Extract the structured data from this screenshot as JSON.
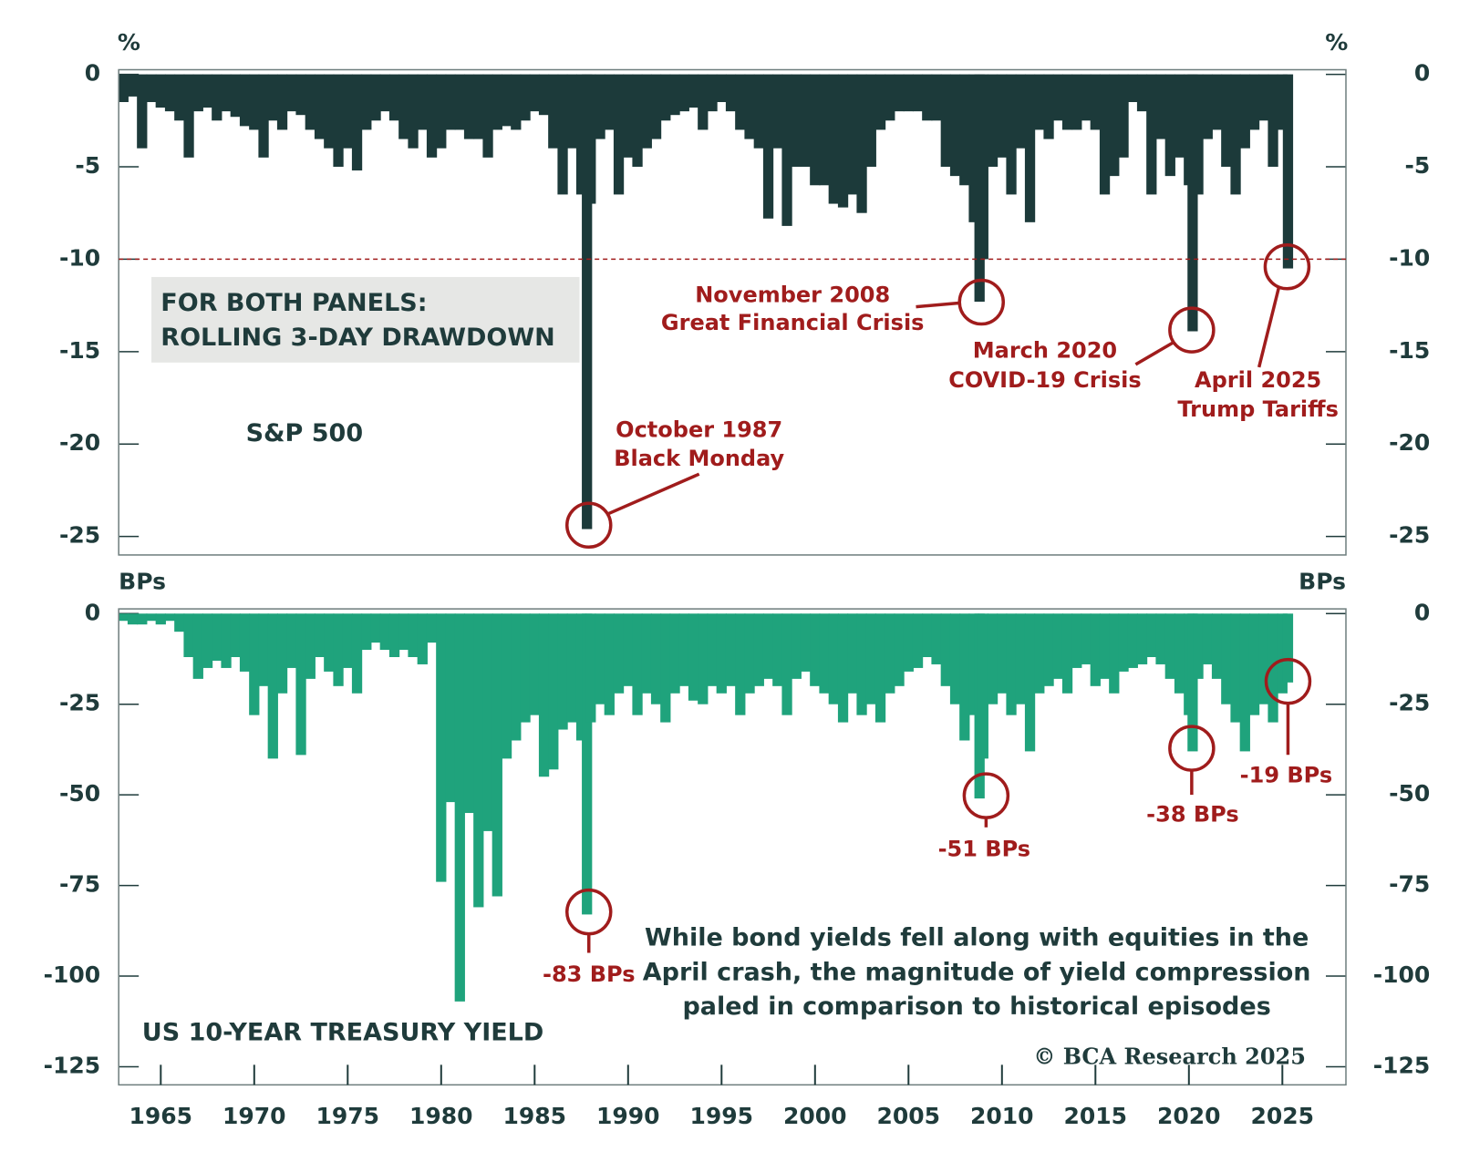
{
  "chart_data": [
    {
      "type": "bar",
      "title": "S&P 500",
      "y_label": "%",
      "y2_label": "%",
      "color": "#1c3a3a",
      "note": [
        "FOR BOTH PANELS:",
        "ROLLING 3-DAY DRAWDOWN"
      ],
      "reference_line": -10,
      "reference_color": "#a01c1c",
      "xlim": [
        1962.75,
        2028.4
      ],
      "ylim": [
        -26,
        0.25
      ],
      "yticks": [
        0,
        -5,
        -10,
        -15,
        -20,
        -25
      ],
      "x": [
        1963.0,
        1963.5,
        1964.0,
        1964.5,
        1965.0,
        1965.5,
        1966.0,
        1966.5,
        1967.0,
        1967.5,
        1968.0,
        1968.5,
        1969.0,
        1969.5,
        1970.0,
        1970.5,
        1971.0,
        1971.5,
        1972.0,
        1972.5,
        1973.0,
        1973.5,
        1974.0,
        1974.5,
        1975.0,
        1975.5,
        1976.0,
        1976.5,
        1977.0,
        1977.5,
        1978.0,
        1978.5,
        1979.0,
        1979.5,
        1980.0,
        1980.5,
        1981.0,
        1981.5,
        1982.0,
        1982.5,
        1983.0,
        1983.5,
        1984.0,
        1984.5,
        1985.0,
        1985.5,
        1986.0,
        1986.5,
        1987.0,
        1987.5,
        1987.8,
        1988.0,
        1988.5,
        1989.0,
        1989.5,
        1990.0,
        1990.5,
        1991.0,
        1991.5,
        1992.0,
        1992.5,
        1993.0,
        1993.5,
        1994.0,
        1994.5,
        1995.0,
        1995.5,
        1996.0,
        1996.5,
        1997.0,
        1997.5,
        1998.0,
        1998.5,
        1999.0,
        1999.5,
        2000.0,
        2000.5,
        2001.0,
        2001.5,
        2002.0,
        2002.5,
        2003.0,
        2003.5,
        2004.0,
        2004.5,
        2005.0,
        2005.5,
        2006.0,
        2006.5,
        2007.0,
        2007.5,
        2008.0,
        2008.5,
        2008.8,
        2009.0,
        2009.5,
        2010.0,
        2010.5,
        2011.0,
        2011.5,
        2012.0,
        2012.5,
        2013.0,
        2013.5,
        2014.0,
        2014.5,
        2015.0,
        2015.5,
        2016.0,
        2016.5,
        2017.0,
        2017.5,
        2018.0,
        2018.5,
        2019.0,
        2019.5,
        2020.0,
        2020.2,
        2020.5,
        2021.0,
        2021.5,
        2022.0,
        2022.5,
        2023.0,
        2023.5,
        2024.0,
        2024.5,
        2025.0,
        2025.3
      ],
      "values": [
        -1.5,
        -1.2,
        -4.0,
        -1.5,
        -1.8,
        -2.0,
        -2.5,
        -4.5,
        -2.0,
        -1.8,
        -2.5,
        -2.0,
        -2.3,
        -2.8,
        -3.0,
        -4.5,
        -2.5,
        -3.0,
        -2.0,
        -2.2,
        -3.0,
        -3.5,
        -4.0,
        -5.0,
        -4.0,
        -5.2,
        -3.0,
        -2.5,
        -2.0,
        -2.5,
        -3.5,
        -4.0,
        -3.0,
        -4.5,
        -4.0,
        -3.0,
        -3.0,
        -3.5,
        -3.5,
        -4.5,
        -3.0,
        -2.8,
        -3.0,
        -2.5,
        -2.0,
        -2.2,
        -4.0,
        -6.5,
        -4.0,
        -6.5,
        -24.6,
        -7.0,
        -3.5,
        -3.0,
        -6.5,
        -4.5,
        -5.0,
        -4.0,
        -3.5,
        -2.5,
        -2.2,
        -2.0,
        -1.8,
        -3.0,
        -2.0,
        -1.5,
        -2.0,
        -3.0,
        -3.5,
        -4.0,
        -7.8,
        -4.0,
        -8.2,
        -5.0,
        -5.0,
        -6.0,
        -6.0,
        -7.0,
        -7.2,
        -6.5,
        -7.5,
        -5.0,
        -3.0,
        -2.5,
        -2.0,
        -2.0,
        -2.0,
        -2.5,
        -2.5,
        -5.0,
        -5.5,
        -6.0,
        -8.0,
        -12.3,
        -10.0,
        -5.0,
        -4.5,
        -6.5,
        -4.0,
        -8.0,
        -3.0,
        -3.5,
        -2.5,
        -3.0,
        -3.0,
        -2.5,
        -3.0,
        -6.5,
        -5.5,
        -4.5,
        -1.5,
        -2.0,
        -6.5,
        -3.5,
        -5.5,
        -4.5,
        -6.0,
        -13.9,
        -6.5,
        -3.5,
        -3.0,
        -5.0,
        -6.5,
        -4.0,
        -3.0,
        -2.5,
        -5.0,
        -3.0,
        -10.5
      ],
      "annotations": [
        {
          "lines": [
            "October 1987",
            "Black Monday"
          ]
        },
        {
          "lines": [
            "November 2008",
            "Great Financial Crisis"
          ]
        },
        {
          "lines": [
            "March 2020",
            "COVID-19 Crisis"
          ]
        },
        {
          "lines": [
            "April 2025",
            "Trump Tariffs"
          ]
        }
      ]
    },
    {
      "type": "bar",
      "title": "US 10-YEAR TREASURY YIELD",
      "y_label": "BPs",
      "y2_label": "BPs",
      "color": "#1fa37c",
      "note": [
        "While bond yields fell along with equities in the",
        "April crash, the magnitude of yield compression",
        "paled in comparison to historical episodes"
      ],
      "credit": "© BCA Research 2025",
      "xlim": [
        1962.75,
        2028.4
      ],
      "ylim": [
        -130,
        1.3
      ],
      "yticks": [
        0,
        -25,
        -50,
        -75,
        -100,
        -125
      ],
      "xticks": [
        1965,
        1970,
        1975,
        1980,
        1985,
        1990,
        1995,
        2000,
        2005,
        2010,
        2015,
        2020,
        2025
      ],
      "x": [
        1963.0,
        1963.5,
        1964.0,
        1964.5,
        1965.0,
        1965.5,
        1966.0,
        1966.5,
        1967.0,
        1967.5,
        1968.0,
        1968.5,
        1969.0,
        1969.5,
        1970.0,
        1970.5,
        1971.0,
        1971.5,
        1972.0,
        1972.5,
        1973.0,
        1973.5,
        1974.0,
        1974.5,
        1975.0,
        1975.5,
        1976.0,
        1976.5,
        1977.0,
        1977.5,
        1978.0,
        1978.5,
        1979.0,
        1979.5,
        1980.0,
        1980.5,
        1981.0,
        1981.5,
        1982.0,
        1982.5,
        1983.0,
        1983.5,
        1984.0,
        1984.5,
        1985.0,
        1985.5,
        1986.0,
        1986.5,
        1987.0,
        1987.5,
        1987.8,
        1988.0,
        1988.5,
        1989.0,
        1989.5,
        1990.0,
        1990.5,
        1991.0,
        1991.5,
        1992.0,
        1992.5,
        1993.0,
        1993.5,
        1994.0,
        1994.5,
        1995.0,
        1995.5,
        1996.0,
        1996.5,
        1997.0,
        1997.5,
        1998.0,
        1998.5,
        1999.0,
        1999.5,
        2000.0,
        2000.5,
        2001.0,
        2001.5,
        2002.0,
        2002.5,
        2003.0,
        2003.5,
        2004.0,
        2004.5,
        2005.0,
        2005.5,
        2006.0,
        2006.5,
        2007.0,
        2007.5,
        2008.0,
        2008.5,
        2008.8,
        2009.0,
        2009.5,
        2010.0,
        2010.5,
        2011.0,
        2011.5,
        2012.0,
        2012.5,
        2013.0,
        2013.5,
        2014.0,
        2014.5,
        2015.0,
        2015.5,
        2016.0,
        2016.5,
        2017.0,
        2017.5,
        2018.0,
        2018.5,
        2019.0,
        2019.5,
        2020.0,
        2020.2,
        2020.5,
        2021.0,
        2021.5,
        2022.0,
        2022.5,
        2023.0,
        2023.5,
        2024.0,
        2024.5,
        2025.0,
        2025.3
      ],
      "values": [
        -2,
        -3,
        -3,
        -2,
        -3,
        -2,
        -5,
        -12,
        -18,
        -15,
        -13,
        -15,
        -12,
        -16,
        -28,
        -20,
        -40,
        -22,
        -15,
        -39,
        -18,
        -12,
        -16,
        -20,
        -15,
        -22,
        -10,
        -8,
        -10,
        -12,
        -10,
        -12,
        -14,
        -8,
        -74,
        -52,
        -107,
        -55,
        -81,
        -60,
        -78,
        -40,
        -35,
        -30,
        -28,
        -45,
        -43,
        -32,
        -30,
        -35,
        -83,
        -30,
        -25,
        -28,
        -22,
        -20,
        -28,
        -22,
        -25,
        -30,
        -22,
        -20,
        -24,
        -25,
        -20,
        -22,
        -20,
        -28,
        -22,
        -20,
        -18,
        -20,
        -28,
        -18,
        -16,
        -20,
        -22,
        -25,
        -30,
        -22,
        -28,
        -25,
        -30,
        -22,
        -20,
        -16,
        -15,
        -12,
        -14,
        -20,
        -25,
        -35,
        -28,
        -51,
        -40,
        -25,
        -22,
        -28,
        -25,
        -38,
        -22,
        -20,
        -18,
        -22,
        -15,
        -14,
        -20,
        -18,
        -22,
        -16,
        -15,
        -14,
        -12,
        -14,
        -18,
        -22,
        -28,
        -38,
        -18,
        -14,
        -18,
        -25,
        -30,
        -38,
        -28,
        -25,
        -30,
        -22,
        -19
      ],
      "annotations": [
        {
          "lines": [
            "-83 BPs"
          ]
        },
        {
          "lines": [
            "-51 BPs"
          ]
        },
        {
          "lines": [
            "-38 BPs"
          ]
        },
        {
          "lines": [
            "-19 BPs"
          ]
        }
      ]
    }
  ]
}
